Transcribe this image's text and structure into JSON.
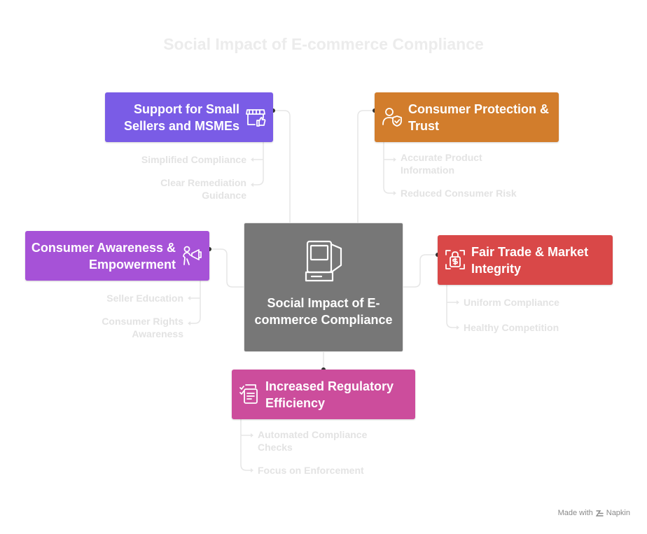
{
  "title": "Social Impact of E-commerce Compliance",
  "center": {
    "label": "Social Impact of E-commerce Compliance",
    "icon": "kiosk-icon"
  },
  "branches": [
    {
      "id": "small-sellers",
      "label": "Support for Small Sellers and MSMEs",
      "icon": "storefront-thumbs-up-icon",
      "color": "#7a5ce6",
      "items": [
        "Simplified Compliance",
        "Clear Remediation Guidance"
      ]
    },
    {
      "id": "consumer-protection",
      "label": "Consumer Protection & Trust",
      "icon": "user-shield-check-icon",
      "color": "#d27d2c",
      "items": [
        "Accurate Product Information",
        "Reduced Consumer Risk"
      ]
    },
    {
      "id": "consumer-awareness",
      "label": "Consumer Awareness & Empowerment",
      "icon": "megaphone-person-icon",
      "color": "#a652d7",
      "items": [
        "Seller Education",
        "Consumer Rights Awareness"
      ]
    },
    {
      "id": "fair-trade",
      "label": "Fair Trade & Market Integrity",
      "icon": "dollar-lock-icon",
      "color": "#d94848",
      "items": [
        "Uniform Compliance",
        "Healthy Competition"
      ]
    },
    {
      "id": "regulatory-efficiency",
      "label": "Increased Regulatory Efficiency",
      "icon": "checklist-approval-icon",
      "color": "#cc4d9c",
      "items": [
        "Automated Compliance Checks",
        "Focus on Enforcement"
      ]
    }
  ],
  "credit": {
    "text": "Made with",
    "brand": "Napkin",
    "icon": "napkin-logo-icon"
  }
}
